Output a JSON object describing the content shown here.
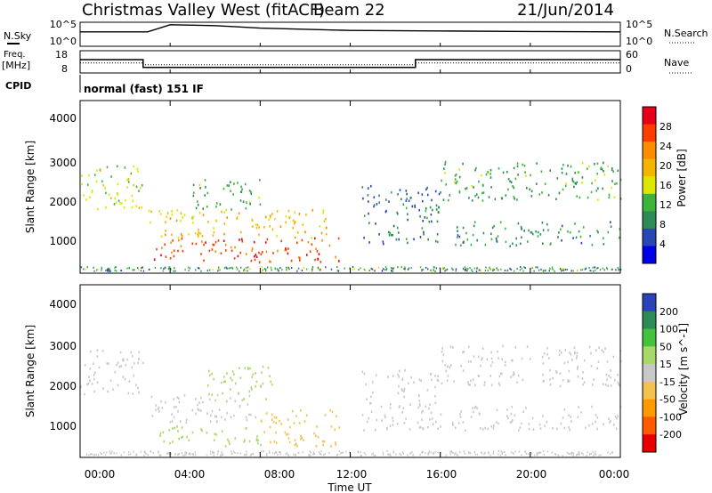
{
  "header": {
    "station": "Christmas Valley West (fitACF)",
    "beam": "Beam 22",
    "date": "21/Jun/2014"
  },
  "nsky_panel": {
    "left_label": "N.Sky",
    "right_label": "N.Search",
    "left_ticks": [
      "10^5",
      "10^0"
    ],
    "right_ticks": [
      "10^5",
      "10^0"
    ]
  },
  "freq_panel": {
    "left_label_line1": "Freq.",
    "left_label_line2": "[MHz]",
    "right_label": "Nave",
    "left_ticks": [
      "18",
      "8"
    ],
    "right_ticks": [
      "60",
      "0"
    ]
  },
  "cpid": {
    "label": "CPID",
    "value": "normal (fast) 151 IF"
  },
  "power_panel": {
    "ylabel": "Slant Range [km]",
    "yticks": [
      "4000",
      "3000",
      "2000",
      "1000"
    ],
    "colorbar_title": "Power [dB]",
    "colorbar_labels": [
      "28",
      "24",
      "20",
      "16",
      "12",
      "8",
      "4"
    ],
    "colorbar_colors": [
      "#e6001a",
      "#ff3c00",
      "#ff8c00",
      "#f5b400",
      "#dde600",
      "#3cb43c",
      "#2e8b57",
      "#2846b4",
      "#0000e6"
    ]
  },
  "velocity_panel": {
    "ylabel": "Slant Range [km]",
    "yticks": [
      "4000",
      "3000",
      "2000",
      "1000"
    ],
    "colorbar_title": "Velocity [m s^-1]",
    "colorbar_labels": [
      "200",
      "100",
      "50",
      "15",
      "-15",
      "-50",
      "-100",
      "-200"
    ],
    "colorbar_colors": [
      "#2a44b8",
      "#2e8b57",
      "#44c23c",
      "#a6d96a",
      "#c8c8c8",
      "#f2c14e",
      "#ff9900",
      "#ff5a00",
      "#e60000"
    ]
  },
  "xaxis": {
    "label": "Time UT",
    "ticks": [
      "00:00",
      "04:00",
      "08:00",
      "12:00",
      "16:00",
      "20:00",
      "00:00"
    ]
  },
  "chart_data": [
    {
      "type": "line",
      "title": "N.Sky / N.Search",
      "xlabel": "Time UT",
      "ylabel": "N.Sky",
      "y_scale": "log",
      "ylim": [
        1,
        100000
      ],
      "x_hours": [
        0,
        3,
        4,
        6,
        8,
        12,
        16,
        20,
        24
      ],
      "series": [
        {
          "name": "N.Sky",
          "values": [
            1000,
            1000,
            30000,
            20000,
            6000,
            2000,
            1500,
            1200,
            1000
          ]
        }
      ]
    },
    {
      "type": "line",
      "title": "Freq. / Nave",
      "xlabel": "Time UT",
      "ylabel": "Freq. [MHz]",
      "ylim": [
        8,
        18
      ],
      "x_hours": [
        0,
        2.8,
        2.8,
        14.9,
        14.9,
        24
      ],
      "series": [
        {
          "name": "Freq.",
          "values": [
            14,
            14,
            10.5,
            10.5,
            14,
            14
          ]
        },
        {
          "name": "Nave",
          "values": [
            27,
            27,
            22,
            22,
            27,
            27
          ]
        }
      ]
    },
    {
      "type": "heatmap",
      "title": "Power [dB]",
      "xlabel": "Time UT",
      "ylabel": "Slant Range [km]",
      "xlim": [
        0,
        24
      ],
      "ylim": [
        200,
        4500
      ],
      "colorbar_range": [
        0,
        30
      ],
      "regions": [
        {
          "t_start": 0.0,
          "t_end": 2.8,
          "range_start": 1800,
          "range_end": 2900,
          "power_db": 14
        },
        {
          "t_start": 3.0,
          "t_end": 11.5,
          "range_start": 500,
          "range_end": 1100,
          "power_db": 26
        },
        {
          "t_start": 3.0,
          "t_end": 11.0,
          "range_start": 1100,
          "range_end": 1800,
          "power_db": 18
        },
        {
          "t_start": 5.0,
          "t_end": 8.0,
          "range_start": 1800,
          "range_end": 2600,
          "power_db": 10
        },
        {
          "t_start": 12.5,
          "t_end": 16.0,
          "range_start": 900,
          "range_end": 2400,
          "power_db": 6
        },
        {
          "t_start": 16.0,
          "t_end": 24.0,
          "range_start": 2000,
          "range_end": 3000,
          "power_db": 10
        },
        {
          "t_start": 16.5,
          "t_end": 24.0,
          "range_start": 900,
          "range_end": 1500,
          "power_db": 8
        }
      ]
    },
    {
      "type": "heatmap",
      "title": "Velocity [m s^-1]",
      "xlabel": "Time UT",
      "ylabel": "Slant Range [km]",
      "xlim": [
        0,
        24
      ],
      "ylim": [
        200,
        4500
      ],
      "colorbar_range": [
        -200,
        200
      ],
      "regions": [
        {
          "t_start": 0.0,
          "t_end": 2.8,
          "range_start": 1800,
          "range_end": 2900,
          "velocity": 0
        },
        {
          "t_start": 3.5,
          "t_end": 8.0,
          "range_start": 500,
          "range_end": 1000,
          "velocity": 60
        },
        {
          "t_start": 8.0,
          "t_end": 11.5,
          "range_start": 500,
          "range_end": 1400,
          "velocity": -40
        },
        {
          "t_start": 3.0,
          "t_end": 8.0,
          "range_start": 1100,
          "range_end": 1800,
          "velocity": 0
        },
        {
          "t_start": 5.5,
          "t_end": 8.5,
          "range_start": 1600,
          "range_end": 2500,
          "velocity": 60
        },
        {
          "t_start": 12.5,
          "t_end": 16.0,
          "range_start": 900,
          "range_end": 2400,
          "velocity": 0
        },
        {
          "t_start": 16.0,
          "t_end": 24.0,
          "range_start": 2000,
          "range_end": 3000,
          "velocity": 0
        },
        {
          "t_start": 16.5,
          "t_end": 24.0,
          "range_start": 900,
          "range_end": 1500,
          "velocity": 0
        }
      ]
    }
  ]
}
